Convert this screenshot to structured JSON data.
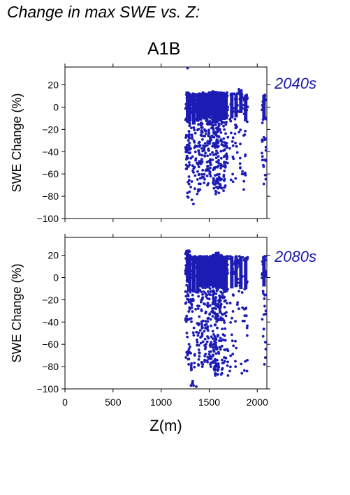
{
  "title": "Change in max SWE vs. Z:",
  "scenario": "A1B",
  "colors": {
    "points": "#1c1cb4",
    "period_label": "#1a1aaa"
  },
  "chart_data": [
    {
      "type": "scatter",
      "title": "A1B",
      "period": "2040s",
      "xlabel": "Z(m)",
      "ylabel": "SWE Change (%)",
      "xlim": [
        0,
        2100
      ],
      "ylim": [
        -100,
        36
      ],
      "xticks": [
        0,
        500,
        1000,
        1500,
        2000
      ],
      "yticks": [
        -100,
        -80,
        -60,
        -40,
        -20,
        0,
        20
      ],
      "show_x_tick_labels": false,
      "grid": false,
      "columns": [
        {
          "x": 1275,
          "min": -81,
          "max": 13,
          "n": 70
        },
        {
          "x": 1300,
          "min": -76,
          "max": 12,
          "n": 35
        },
        {
          "x": 1340,
          "min": -87,
          "max": 12,
          "n": 40
        },
        {
          "x": 1380,
          "min": -78,
          "max": 12,
          "n": 25
        },
        {
          "x": 1410,
          "min": -74,
          "max": 12,
          "n": 60
        },
        {
          "x": 1440,
          "min": -68,
          "max": 13,
          "n": 40
        },
        {
          "x": 1470,
          "min": -70,
          "max": 12,
          "n": 30
        },
        {
          "x": 1500,
          "min": -62,
          "max": 13,
          "n": 55
        },
        {
          "x": 1525,
          "min": -60,
          "max": 13,
          "n": 35
        },
        {
          "x": 1555,
          "min": -76,
          "max": 14,
          "n": 70
        },
        {
          "x": 1580,
          "min": -78,
          "max": 13,
          "n": 75
        },
        {
          "x": 1605,
          "min": -77,
          "max": 13,
          "n": 65
        },
        {
          "x": 1640,
          "min": -75,
          "max": 13,
          "n": 55
        },
        {
          "x": 1675,
          "min": -72,
          "max": 13,
          "n": 50
        },
        {
          "x": 1735,
          "min": -67,
          "max": 12,
          "n": 20
        },
        {
          "x": 1780,
          "min": -64,
          "max": 12,
          "n": 20
        },
        {
          "x": 1830,
          "min": -60,
          "max": 16,
          "n": 20
        },
        {
          "x": 1880,
          "min": -74,
          "max": 11,
          "n": 25
        },
        {
          "x": 2070,
          "min": -69,
          "max": 11,
          "n": 35
        }
      ],
      "outliers": [
        {
          "x": 1275,
          "y": 35
        }
      ]
    },
    {
      "type": "scatter",
      "period": "2080s",
      "xlabel": "Z(m)",
      "ylabel": "SWE Change (%)",
      "xlim": [
        0,
        2100
      ],
      "ylim": [
        -100,
        36
      ],
      "xticks": [
        0,
        500,
        1000,
        1500,
        2000
      ],
      "yticks": [
        -100,
        -80,
        -60,
        -40,
        -20,
        0,
        20
      ],
      "show_x_tick_labels": true,
      "grid": false,
      "columns": [
        {
          "x": 1275,
          "min": -78,
          "max": 24,
          "n": 75
        },
        {
          "x": 1300,
          "min": -97,
          "max": 20,
          "n": 35
        },
        {
          "x": 1340,
          "min": -97,
          "max": 19,
          "n": 40
        },
        {
          "x": 1380,
          "min": -98,
          "max": 18,
          "n": 25
        },
        {
          "x": 1410,
          "min": -80,
          "max": 19,
          "n": 60
        },
        {
          "x": 1440,
          "min": -78,
          "max": 19,
          "n": 40
        },
        {
          "x": 1470,
          "min": -76,
          "max": 18,
          "n": 30
        },
        {
          "x": 1500,
          "min": -78,
          "max": 19,
          "n": 55
        },
        {
          "x": 1525,
          "min": -80,
          "max": 20,
          "n": 35
        },
        {
          "x": 1555,
          "min": -86,
          "max": 21,
          "n": 75
        },
        {
          "x": 1580,
          "min": -88,
          "max": 22,
          "n": 80
        },
        {
          "x": 1605,
          "min": -87,
          "max": 20,
          "n": 65
        },
        {
          "x": 1640,
          "min": -86,
          "max": 19,
          "n": 55
        },
        {
          "x": 1675,
          "min": -88,
          "max": 19,
          "n": 50
        },
        {
          "x": 1735,
          "min": -84,
          "max": 19,
          "n": 20
        },
        {
          "x": 1780,
          "min": -80,
          "max": 19,
          "n": 20
        },
        {
          "x": 1830,
          "min": -86,
          "max": 19,
          "n": 20
        },
        {
          "x": 1880,
          "min": -84,
          "max": 18,
          "n": 25
        },
        {
          "x": 2070,
          "min": -78,
          "max": 19,
          "n": 35
        }
      ],
      "outliers": []
    }
  ]
}
